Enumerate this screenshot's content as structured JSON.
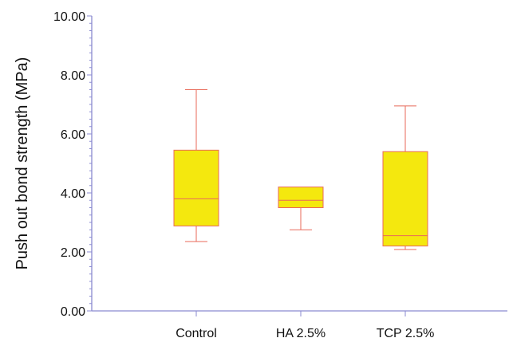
{
  "chart_data": {
    "type": "box",
    "ylabel": "Push out bond strength (MPa)",
    "ylim": [
      0,
      10
    ],
    "y_ticks": [
      "0.00",
      "2.00",
      "4.00",
      "6.00",
      "8.00",
      "10.00"
    ],
    "y_tick_values": [
      0,
      2,
      4,
      6,
      8,
      10
    ],
    "categories": [
      "Control",
      "HA 2.5%",
      "TCP 2.5%"
    ],
    "boxes": [
      {
        "category": "Control",
        "min": 2.35,
        "q1": 2.88,
        "median": 3.8,
        "q3": 5.45,
        "max": 7.5
      },
      {
        "category": "HA 2.5%",
        "min": 2.75,
        "q1": 3.5,
        "median": 3.75,
        "q3": 4.2,
        "max": 4.2
      },
      {
        "category": "TCP 2.5%",
        "min": 2.08,
        "q1": 2.2,
        "median": 2.55,
        "q3": 5.4,
        "max": 6.95
      }
    ],
    "grid": false,
    "colors": {
      "box_fill": "#f4e80e",
      "box_stroke": "#e86a5a",
      "axis": "#8a8ad0",
      "text": "#111111"
    }
  }
}
